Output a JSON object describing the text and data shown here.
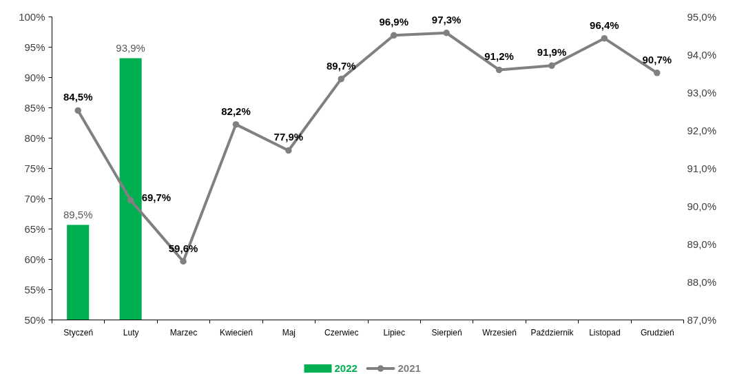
{
  "chart_data": {
    "type": "bar",
    "grid": false,
    "legend": "bottom",
    "categories": [
      "Styczeń",
      "Luty",
      "Marzec",
      "Kwiecień",
      "Maj",
      "Czerwiec",
      "Lipiec",
      "Sierpień",
      "Wrzesień",
      "Październik",
      "Listopad",
      "Grudzień"
    ],
    "ylim": [
      50,
      100
    ],
    "yticks": [
      {
        "value": 50,
        "label": "50%"
      },
      {
        "value": 55,
        "label": "55%"
      },
      {
        "value": 60,
        "label": "60%"
      },
      {
        "value": 65,
        "label": "65%"
      },
      {
        "value": 70,
        "label": "70%"
      },
      {
        "value": 75,
        "label": "75%"
      },
      {
        "value": 80,
        "label": "80%"
      },
      {
        "value": 85,
        "label": "85%"
      },
      {
        "value": 90,
        "label": "90%"
      },
      {
        "value": 95,
        "label": "95%"
      },
      {
        "value": 100,
        "label": "100%"
      }
    ],
    "y2lim": [
      87,
      95
    ],
    "y2ticks": [
      {
        "value": 87,
        "label": "87,0%"
      },
      {
        "value": 88,
        "label": "88,0%"
      },
      {
        "value": 89,
        "label": "89,0%"
      },
      {
        "value": 90,
        "label": "90,0%"
      },
      {
        "value": 91,
        "label": "91,0%"
      },
      {
        "value": 92,
        "label": "92,0%"
      },
      {
        "value": 93,
        "label": "93,0%"
      },
      {
        "value": 94,
        "label": "94,0%"
      },
      {
        "value": 95,
        "label": "95,0%"
      }
    ],
    "series": [
      {
        "name": "2022",
        "axis": "y2",
        "color": "#00b050",
        "values": [
          89.5,
          93.9,
          null,
          null,
          null,
          null,
          null,
          null,
          null,
          null,
          null,
          null
        ],
        "value_labels": [
          "89,5%",
          "93,9%",
          null,
          null,
          null,
          null,
          null,
          null,
          null,
          null,
          null,
          null
        ]
      },
      {
        "name": "2021",
        "type": "line",
        "axis": "y",
        "color": "#808080",
        "marker": "circle",
        "line_style": "solid",
        "values": [
          84.5,
          69.7,
          59.6,
          82.2,
          77.9,
          89.7,
          96.9,
          97.3,
          91.2,
          91.9,
          96.4,
          90.7
        ],
        "value_labels": [
          "84,5%",
          "69,7%",
          "59,6%",
          "82,2%",
          "77,9%",
          "89,7%",
          "96,9%",
          "97,3%",
          "91,2%",
          "91,9%",
          "96,4%",
          "90,7%"
        ]
      }
    ]
  }
}
